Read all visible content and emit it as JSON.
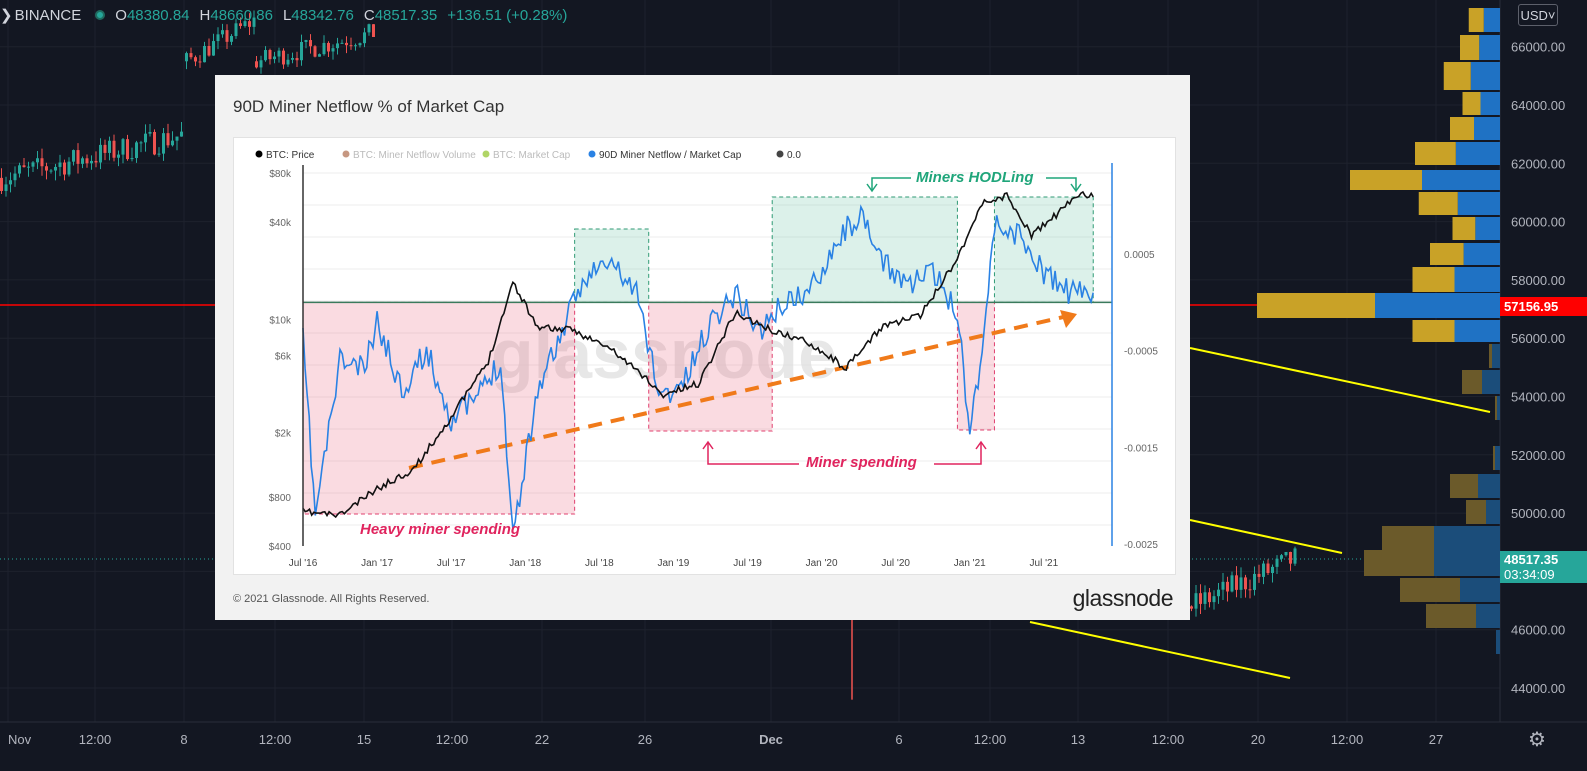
{
  "tradingview": {
    "symbol": "BINANCE",
    "ohlc": {
      "o": "48380.84",
      "h": "48660.86",
      "l": "48342.76",
      "c": "48517.35",
      "change": "+136.51 (+0.28%)"
    },
    "currency": "USD",
    "currency_arrow": "˅",
    "price_axis": [
      "66000.00",
      "64000.00",
      "62000.00",
      "60000.00",
      "58000.00",
      "56000.00",
      "54000.00",
      "52000.00",
      "50000.00",
      "48000.00",
      "46000.00",
      "44000.00"
    ],
    "time_axis": [
      "Nov",
      "12:00",
      "8",
      "12:00",
      "15",
      "12:00",
      "22",
      "26",
      "Dec",
      "6",
      "12:00",
      "13",
      "12:00",
      "20",
      "12:00",
      "27"
    ],
    "alert_price": "57156.95",
    "last_price": "48517.35",
    "countdown": "03:34:09",
    "colors": {
      "background": "#131722",
      "up": "#26a69a",
      "down": "#ef5350",
      "trend": "#ffff00",
      "alert": "#ff0000"
    }
  },
  "overlay": {
    "title": "90D Miner Netflow % of Market Cap",
    "copyright": "© 2021 Glassnode. All Rights Reserved.",
    "brand": "glassnode",
    "watermark": "glassnode"
  },
  "chart_data": {
    "type": "line",
    "title": "90D Miner Netflow % of Market Cap",
    "legend": [
      {
        "name": "BTC: Price",
        "color": "#000000",
        "active": true
      },
      {
        "name": "BTC: Miner Netflow Volume",
        "color": "#a0522d",
        "active": false
      },
      {
        "name": "BTC: Market Cap",
        "color": "#7cb900",
        "active": false
      },
      {
        "name": "90D Miner Netflow / Market Cap",
        "color": "#2a82e4",
        "active": true
      },
      {
        "name": "0.0",
        "color": "#444444",
        "active": true
      }
    ],
    "x_ticks": [
      "Jul '16",
      "Jan '17",
      "Jul '17",
      "Jan '18",
      "Jul '18",
      "Jan '19",
      "Jul '19",
      "Jan '20",
      "Jul '20",
      "Jan '21",
      "Jul '21"
    ],
    "y_left_ticks": [
      "$80k",
      "$40k",
      "$10k",
      "$6k",
      "$2k",
      "$800",
      "$400"
    ],
    "y_right_ticks": [
      "0.0005",
      "-0.0005",
      "-0.0015",
      "-0.0025"
    ],
    "y_right_range": [
      -0.0025,
      0.0012
    ],
    "y_left_scale": "log",
    "btc_price": {
      "name": "BTC: Price",
      "x": [
        "2016-07",
        "2016-10",
        "2017-01",
        "2017-04",
        "2017-07",
        "2017-10",
        "2017-12",
        "2018-02",
        "2018-05",
        "2018-08",
        "2018-11",
        "2018-12",
        "2019-03",
        "2019-06",
        "2019-09",
        "2019-12",
        "2020-03",
        "2020-06",
        "2020-09",
        "2020-12",
        "2021-02",
        "2021-04",
        "2021-06",
        "2021-08",
        "2021-10",
        "2021-11"
      ],
      "values": [
        650,
        620,
        900,
        1200,
        2500,
        5500,
        17000,
        9000,
        8500,
        6500,
        4200,
        3400,
        4000,
        11000,
        8500,
        7200,
        5000,
        9200,
        10500,
        24000,
        52000,
        58000,
        33000,
        44000,
        61000,
        57000
      ]
    },
    "netflow_90d": {
      "name": "90D Miner Netflow / Market Cap",
      "x": [
        "2016-07",
        "2016-08",
        "2016-10",
        "2016-12",
        "2017-01",
        "2017-03",
        "2017-05",
        "2017-07",
        "2017-09",
        "2017-11",
        "2017-12",
        "2018-02",
        "2018-04",
        "2018-06",
        "2018-08",
        "2018-10",
        "2018-12",
        "2019-02",
        "2019-04",
        "2019-06",
        "2019-08",
        "2019-10",
        "2019-12",
        "2020-02",
        "2020-04",
        "2020-06",
        "2020-08",
        "2020-10",
        "2020-12",
        "2021-01",
        "2021-02",
        "2021-03",
        "2021-05",
        "2021-07",
        "2021-09",
        "2021-11"
      ],
      "values": [
        -0.0004,
        -0.0022,
        -0.0006,
        -0.0007,
        -0.0002,
        -0.0009,
        -0.0005,
        -0.0012,
        -0.001,
        -0.0006,
        -0.0024,
        -0.0009,
        -0.0003,
        0.0003,
        0.0004,
        0.0001,
        -0.001,
        -0.0008,
        -0.0002,
        0.0001,
        -0.0003,
        0.0,
        0.0001,
        0.0006,
        0.0009,
        0.0004,
        0.0002,
        0.0003,
        -0.0001,
        -0.0013,
        -0.0005,
        0.0008,
        0.0007,
        0.0003,
        0.0001,
        0.0001
      ]
    },
    "annotations": {
      "heavy_spending": "Heavy miner spending",
      "miner_spending": "Miner spending",
      "miners_hodling": "Miners HODLing"
    }
  }
}
